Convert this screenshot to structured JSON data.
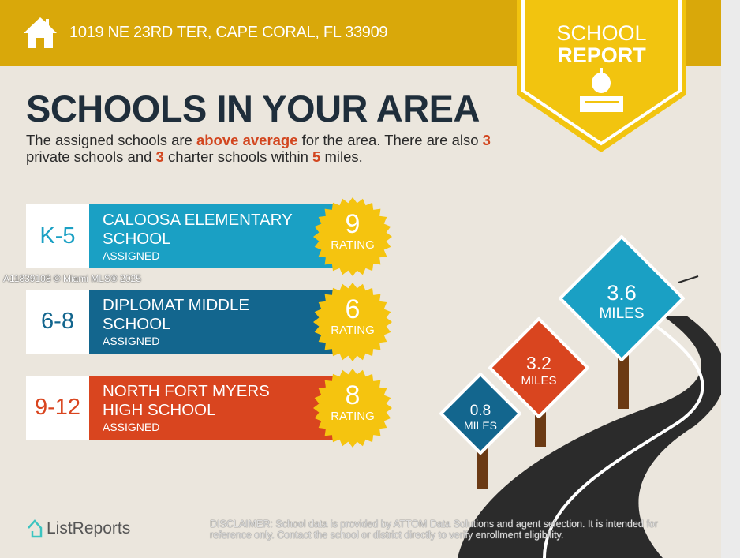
{
  "header": {
    "address": "1019 NE 23RD TER, CAPE CORAL, FL 33909",
    "icon": "home-icon"
  },
  "badge": {
    "line1": "SCHOOL",
    "line2": "REPORT",
    "icon": "apple-books-icon"
  },
  "title": "SCHOOLS IN YOUR AREA",
  "intro": {
    "p1": "The assigned schools are ",
    "highlight": "above average",
    "p2": " for the area. There are also ",
    "private_count": "3",
    "p3": " private schools and ",
    "charter_count": "3",
    "p4": " charter schools within ",
    "miles": "5",
    "p5": " miles."
  },
  "schools": [
    {
      "grades": "K-5",
      "name_line1": "CALOOSA ELEMENTARY",
      "name_line2": "SCHOOL",
      "status": "ASSIGNED",
      "rating": "9",
      "rating_label": "RATING",
      "color": "#1aa0c4"
    },
    {
      "grades": "6-8",
      "name_line1": "DIPLOMAT MIDDLE",
      "name_line2": "SCHOOL",
      "status": "ASSIGNED",
      "rating": "6",
      "rating_label": "RATING",
      "color": "#13668e"
    },
    {
      "grades": "9-12",
      "name_line1": "NORTH FORT MYERS",
      "name_line2": "HIGH SCHOOL",
      "status": "ASSIGNED",
      "rating": "8",
      "rating_label": "RATING",
      "color": "#d9451f"
    }
  ],
  "signs": [
    {
      "distance": "0.8",
      "unit": "MILES",
      "color": "#13668e"
    },
    {
      "distance": "3.2",
      "unit": "MILES",
      "color": "#d9451f"
    },
    {
      "distance": "3.6",
      "unit": "MILES",
      "color": "#1aa0c4"
    }
  ],
  "watermark": "A11839108 © Miami MLS® 2025",
  "footer": {
    "logo": "ListReports",
    "disclaimer_label": "DISCLAIMER:",
    "disclaimer": " School data is provided by ATTOM Data Solutions and agent selection. It is intended for reference only. Contact the school or district directly to verify enrollment eligibility."
  },
  "colors": {
    "header": "#d9a80a",
    "badge": "#f2c40f",
    "star": "#f5c40f",
    "title": "#1f2e3b",
    "highlight": "#d2461f"
  }
}
